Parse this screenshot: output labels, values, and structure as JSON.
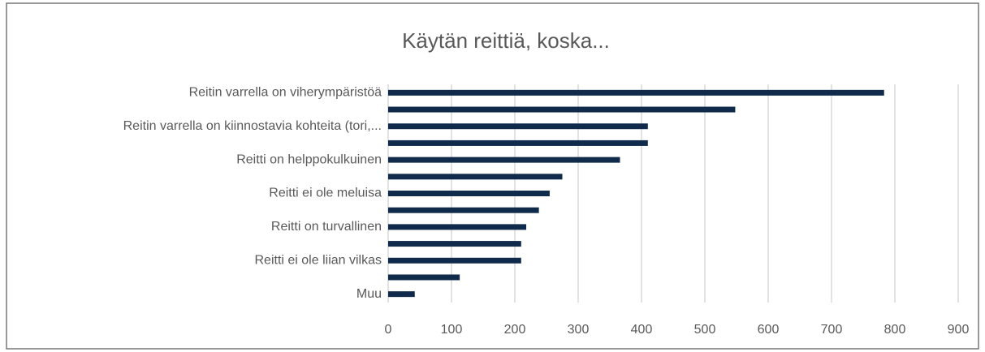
{
  "chart_data": {
    "type": "barh",
    "title": "Käytän reittiä, koska...",
    "categories": [
      "Reitin varrella on viherympäristöä",
      null,
      "Reitin varrella on kiinnostavia kohteita (tori,...",
      null,
      "Reitti on helppokulkuinen",
      null,
      "Reitti ei ole meluisa",
      null,
      "Reitti on turvallinen",
      null,
      "Reitti ei ole liian vilkas",
      null,
      "Muu"
    ],
    "values": [
      783,
      548,
      410,
      410,
      366,
      275,
      255,
      238,
      218,
      210,
      210,
      113,
      42
    ],
    "color": "#0f2a4a",
    "xlim": [
      0,
      900
    ],
    "xticks": [
      0,
      100,
      200,
      300,
      400,
      500,
      600,
      700,
      800,
      900
    ],
    "grid": true
  }
}
